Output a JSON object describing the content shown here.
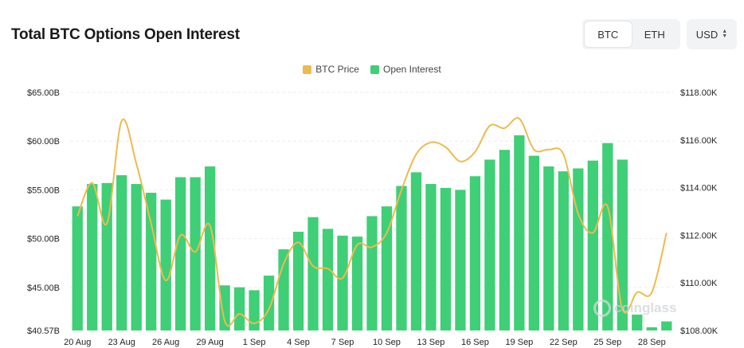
{
  "header": {
    "title": "Total BTC Options Open Interest",
    "asset_toggle": [
      {
        "label": "BTC",
        "active": true
      },
      {
        "label": "ETH",
        "active": false
      }
    ],
    "currency": "USD"
  },
  "watermark": "coinglass",
  "colors": {
    "open_interest": "#3fcf76",
    "btc_price": "#ecbb4f",
    "grid": "#eeeeee",
    "axis_text": "#1f1f1f"
  },
  "chart_data": {
    "type": "bar",
    "legend": [
      {
        "name": "BTC Price",
        "color": "#ecbb4f"
      },
      {
        "name": "Open Interest",
        "color": "#3fcf76"
      }
    ],
    "legend_position": "top-center",
    "grid": true,
    "categories": [
      "20 Aug",
      "21 Aug",
      "22 Aug",
      "23 Aug",
      "24 Aug",
      "25 Aug",
      "26 Aug",
      "27 Aug",
      "28 Aug",
      "29 Aug",
      "30 Aug",
      "31 Aug",
      "1 Sep",
      "2 Sep",
      "3 Sep",
      "4 Sep",
      "5 Sep",
      "6 Sep",
      "7 Sep",
      "8 Sep",
      "9 Sep",
      "10 Sep",
      "11 Sep",
      "12 Sep",
      "13 Sep",
      "14 Sep",
      "15 Sep",
      "16 Sep",
      "17 Sep",
      "18 Sep",
      "19 Sep",
      "20 Sep",
      "21 Sep",
      "22 Sep",
      "23 Sep",
      "24 Sep",
      "25 Sep",
      "26 Sep",
      "27 Sep",
      "28 Sep",
      "29 Sep"
    ],
    "x_tick_labels": [
      "20 Aug",
      "23 Aug",
      "26 Aug",
      "29 Aug",
      "1 Sep",
      "4 Sep",
      "7 Sep",
      "10 Sep",
      "13 Sep",
      "16 Sep",
      "19 Sep",
      "22 Sep",
      "25 Sep",
      "28 Sep"
    ],
    "series": [
      {
        "name": "Open Interest",
        "type": "bar",
        "axis": "left",
        "values": [
          53.3,
          55.6,
          55.7,
          56.5,
          55.6,
          54.7,
          54.0,
          56.3,
          56.3,
          57.4,
          45.2,
          45.0,
          44.7,
          46.2,
          48.9,
          50.7,
          52.2,
          51.0,
          50.3,
          50.2,
          52.3,
          53.3,
          55.4,
          56.8,
          55.6,
          55.2,
          55.0,
          56.4,
          58.1,
          59.1,
          60.6,
          58.5,
          57.4,
          56.9,
          57.2,
          58.0,
          59.8,
          58.1,
          42.2,
          40.9,
          41.5
        ]
      },
      {
        "name": "BTC Price",
        "type": "line",
        "axis": "right",
        "values": [
          112.8,
          114.2,
          112.5,
          116.8,
          115.0,
          112.5,
          110.1,
          112.0,
          111.3,
          112.4,
          108.4,
          108.7,
          108.3,
          108.9,
          110.8,
          111.7,
          110.7,
          110.6,
          110.2,
          111.6,
          111.5,
          112.1,
          113.9,
          115.4,
          115.9,
          115.7,
          115.1,
          115.5,
          116.6,
          116.5,
          116.9,
          115.6,
          115.6,
          115.4,
          112.9,
          112.1,
          113.2,
          108.9,
          109.6,
          109.6,
          112.1
        ]
      }
    ],
    "y_left": {
      "min": 40.57,
      "max": 65.0,
      "ticks": [
        "$65.00B",
        "$60.00B",
        "$55.00B",
        "$50.00B",
        "$45.00B",
        "$40.57B"
      ],
      "tick_values": [
        65,
        60,
        55,
        50,
        45,
        40.57
      ]
    },
    "y_right": {
      "min": 108.0,
      "max": 118.0,
      "ticks": [
        "$118.00K",
        "$116.00K",
        "$114.00K",
        "$112.00K",
        "$110.00K",
        "$108.00K"
      ],
      "tick_values": [
        118,
        116,
        114,
        112,
        110,
        108
      ]
    }
  }
}
